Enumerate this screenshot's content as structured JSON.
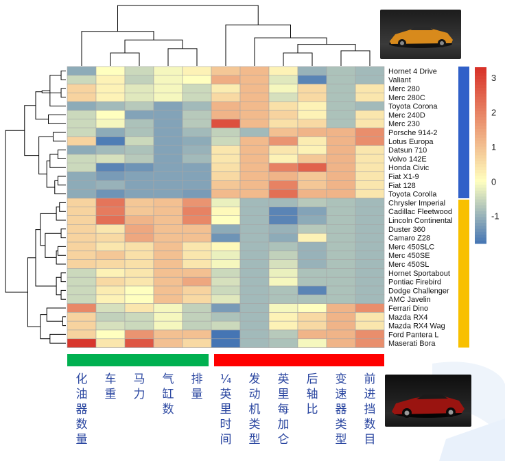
{
  "chart_data": {
    "type": "heatmap",
    "columns": [
      "化油器数量",
      "车重",
      "马力",
      "气缸数",
      "排量",
      "¼英里时间",
      "发动机类型",
      "英里每加仑",
      "后轴比",
      "变速器类型",
      "前进挡数目"
    ],
    "rows": [
      "Hornet 4 Drive",
      "Valiant",
      "Merc 280",
      "Merc 280C",
      "Toyota Corona",
      "Merc 240D",
      "Merc 230",
      "Porsche 914-2",
      "Lotus Europa",
      "Datsun 710",
      "Volvo 142E",
      "Honda Civic",
      "Fiat X1-9",
      "Fiat 128",
      "Toyota Corolla",
      "Chrysler Imperial",
      "Cadillac Fleetwood",
      "Lincoln Continental",
      "Duster 360",
      "Camaro Z28",
      "Merc 450SLC",
      "Merc 450SE",
      "Merc 450SL",
      "Hornet Sportabout",
      "Pontiac Firebird",
      "Dodge Challenger",
      "AMC Javelin",
      "Ferrari Dino",
      "Mazda RX4",
      "Mazda RX4 Wag",
      "Ford Pantera L",
      "Maserati Bora"
    ],
    "values": [
      [
        -1.1,
        -0.0,
        -0.5,
        -0.1,
        0.2,
        0.9,
        1.1,
        0.2,
        -1.0,
        -0.8,
        -0.9
      ],
      [
        -0.5,
        0.2,
        -0.6,
        -0.1,
        -0.0,
        1.3,
        1.1,
        -0.3,
        -1.6,
        -0.8,
        -0.9
      ],
      [
        0.7,
        0.2,
        -0.3,
        -0.1,
        -0.5,
        0.3,
        1.1,
        -0.1,
        0.6,
        -0.8,
        0.4
      ],
      [
        0.7,
        0.2,
        -0.3,
        -0.1,
        -0.5,
        0.6,
        1.1,
        -0.4,
        0.6,
        -0.8,
        0.4
      ],
      [
        -1.1,
        -0.9,
        -0.7,
        -1.2,
        -0.9,
        1.2,
        1.1,
        0.5,
        0.2,
        -0.8,
        -0.9
      ],
      [
        -0.5,
        -0.0,
        -1.2,
        -1.2,
        -0.7,
        1.2,
        1.1,
        0.7,
        0.2,
        -0.8,
        0.4
      ],
      [
        -0.5,
        -0.1,
        -0.8,
        -1.2,
        -0.7,
        2.8,
        1.1,
        0.5,
        0.6,
        -0.8,
        0.4
      ],
      [
        -0.5,
        -1.1,
        -0.8,
        -1.2,
        -0.9,
        -0.6,
        -0.9,
        1.0,
        1.2,
        1.2,
        1.8
      ],
      [
        0.7,
        -1.7,
        -0.5,
        -1.2,
        -1.1,
        -0.5,
        1.1,
        1.7,
        0.3,
        1.2,
        1.8
      ],
      [
        -1.1,
        -0.9,
        -0.8,
        -1.2,
        -1.0,
        0.4,
        1.1,
        0.4,
        0.2,
        1.2,
        0.4
      ],
      [
        -0.5,
        -0.4,
        -0.7,
        -1.2,
        -0.9,
        0.4,
        1.1,
        0.2,
        0.9,
        1.2,
        0.4
      ],
      [
        -0.5,
        -1.6,
        -1.4,
        -1.2,
        -1.2,
        0.5,
        1.1,
        2.0,
        2.5,
        1.2,
        0.4
      ],
      [
        -1.1,
        -1.3,
        -1.2,
        -1.2,
        -1.2,
        0.6,
        1.1,
        1.2,
        0.9,
        1.2,
        0.4
      ],
      [
        -1.1,
        -1.0,
        -1.2,
        -1.2,
        -1.2,
        0.9,
        1.1,
        2.0,
        0.9,
        1.2,
        0.4
      ],
      [
        -1.1,
        -1.4,
        -1.2,
        -1.2,
        -1.3,
        1.1,
        1.1,
        2.3,
        1.2,
        1.2,
        0.4
      ],
      [
        0.7,
        2.2,
        0.9,
        1.0,
        1.7,
        -0.2,
        -0.9,
        -0.9,
        -0.7,
        -0.8,
        -0.9
      ],
      [
        0.7,
        2.1,
        0.9,
        1.0,
        2.0,
        0.1,
        -0.9,
        -1.6,
        -1.2,
        -0.8,
        -0.9
      ],
      [
        0.7,
        2.3,
        1.2,
        1.0,
        1.9,
        -0.0,
        -0.9,
        -1.6,
        -1.1,
        -0.8,
        -0.9
      ],
      [
        0.7,
        0.4,
        1.4,
        1.0,
        1.0,
        -1.1,
        -0.9,
        -1.0,
        -0.7,
        -0.8,
        -0.9
      ],
      [
        0.7,
        0.6,
        1.4,
        1.0,
        1.0,
        -1.4,
        -0.9,
        -1.1,
        0.2,
        -0.8,
        -0.9
      ],
      [
        0.7,
        0.4,
        0.5,
        1.0,
        0.4,
        0.1,
        -0.9,
        -0.8,
        -1.0,
        -0.8,
        -0.9
      ],
      [
        0.7,
        0.9,
        0.5,
        1.0,
        0.4,
        -0.2,
        -0.9,
        -0.6,
        -1.0,
        -0.8,
        -0.9
      ],
      [
        0.7,
        0.6,
        0.5,
        1.0,
        0.4,
        -0.1,
        -0.9,
        -0.4,
        -1.0,
        -0.8,
        -0.9
      ],
      [
        -0.5,
        0.2,
        0.4,
        1.0,
        1.0,
        -0.5,
        -0.9,
        -0.2,
        -0.8,
        -0.8,
        -0.9
      ],
      [
        -0.5,
        0.6,
        0.4,
        1.0,
        1.4,
        -0.4,
        -0.9,
        -0.1,
        -0.8,
        -0.8,
        -0.9
      ],
      [
        -0.5,
        0.3,
        0.0,
        1.0,
        0.7,
        -0.5,
        -0.9,
        -0.8,
        -1.6,
        -0.8,
        -0.9
      ],
      [
        -0.5,
        0.2,
        0.0,
        1.0,
        0.6,
        -0.3,
        -0.9,
        -0.8,
        -0.8,
        -0.8,
        -0.9
      ],
      [
        1.9,
        -0.4,
        0.4,
        -0.1,
        -0.6,
        -1.3,
        -0.9,
        -0.1,
        0.0,
        1.2,
        1.8
      ],
      [
        0.7,
        -0.6,
        -0.5,
        -0.1,
        -0.6,
        -0.8,
        -0.9,
        0.2,
        0.6,
        1.2,
        0.4
      ],
      [
        0.7,
        -0.4,
        -0.5,
        -0.1,
        -0.6,
        -0.5,
        -0.9,
        0.2,
        0.6,
        1.2,
        0.4
      ],
      [
        0.7,
        -0.0,
        1.7,
        1.0,
        1.0,
        -1.9,
        -0.9,
        -0.7,
        1.2,
        1.2,
        1.8
      ],
      [
        3.2,
        0.4,
        2.7,
        1.0,
        0.6,
        -1.8,
        -0.9,
        -0.8,
        -0.1,
        1.2,
        1.8
      ]
    ],
    "colorbar": {
      "ticks": [
        3,
        2,
        1,
        0,
        -1
      ],
      "range": [
        -1.8,
        3.3
      ]
    },
    "colors": {
      "low": "#4575b4",
      "mid": "#ffffbf",
      "high": "#d73027"
    },
    "row_annotation_colors": {
      "group1": "#3060c8",
      "group2": "#f8c000"
    },
    "column_annotation_colors": {
      "group1": "#00b050",
      "group2": "#ff0000"
    },
    "row_groups": [
      15,
      17
    ],
    "column_groups": [
      5,
      6
    ],
    "row_dendrogram": [
      [
        0,
        1,
        0.3
      ],
      [
        2,
        3,
        0.3
      ],
      [
        32,
        4,
        1.0
      ],
      [
        5,
        6,
        1.1
      ],
      [
        33,
        34,
        1.5
      ],
      [
        35,
        36,
        1.9
      ],
      [
        9,
        10,
        0.5
      ],
      [
        38,
        11,
        1.0
      ],
      [
        12,
        13,
        0.5
      ],
      [
        40,
        14,
        0.7
      ],
      [
        41,
        39,
        1.2
      ],
      [
        7,
        8,
        0.8
      ],
      [
        42,
        43,
        1.7
      ],
      [
        44,
        37,
        2.6
      ],
      [
        15,
        16,
        0.4
      ],
      [
        46,
        17,
        0.6
      ],
      [
        18,
        19,
        0.3
      ],
      [
        20,
        21,
        0.5
      ],
      [
        49,
        22,
        0.6
      ],
      [
        48,
        50,
        1.3
      ],
      [
        47,
        51,
        1.6
      ],
      [
        23,
        24,
        0.3
      ],
      [
        25,
        26,
        0.3
      ],
      [
        53,
        54,
        0.6
      ],
      [
        52,
        55,
        1.9
      ],
      [
        28,
        29,
        0.2
      ],
      [
        27,
        57,
        1.2
      ],
      [
        30,
        31,
        1.0
      ],
      [
        58,
        59,
        1.6
      ],
      [
        56,
        60,
        2.4
      ],
      [
        45,
        61,
        3.8
      ]
    ],
    "col_dendrogram": [
      [
        1,
        2,
        0.6
      ],
      [
        3,
        4,
        0.8
      ],
      [
        11,
        12,
        1.2
      ],
      [
        0,
        13,
        1.6
      ],
      [
        7,
        8,
        0.6
      ],
      [
        9,
        10,
        0.7
      ],
      [
        15,
        16,
        1.0
      ],
      [
        6,
        17,
        1.3
      ],
      [
        5,
        18,
        1.9
      ],
      [
        14,
        19,
        2.8
      ]
    ]
  }
}
